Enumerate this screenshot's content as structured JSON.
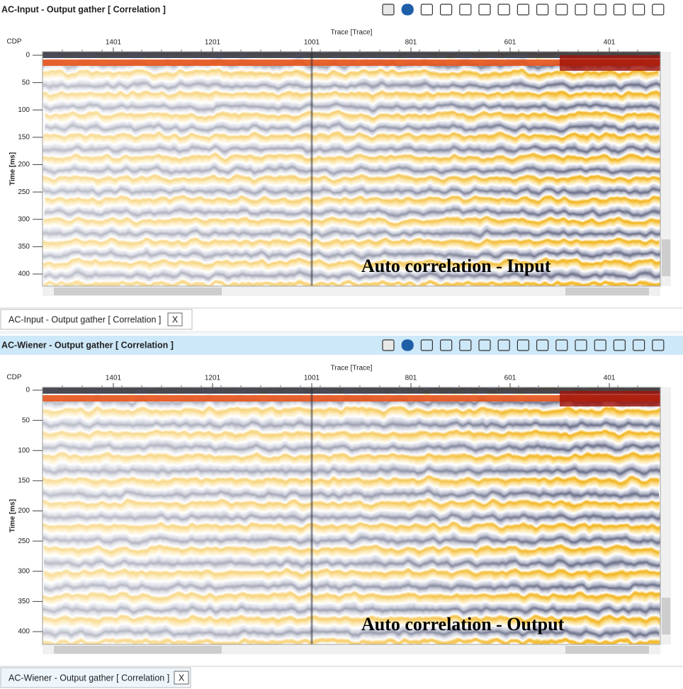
{
  "panels": [
    {
      "title": "AC-Input - Output gather [ Correlation ]",
      "x_axis_label": "Trace [Trace]",
      "cdp_label": "CDP",
      "y_axis_label": "Time [ms]",
      "x_ticks": [
        1401,
        1201,
        1001,
        801,
        601,
        401
      ],
      "y_ticks": [
        0,
        50,
        100,
        150,
        200,
        250,
        300,
        350,
        400
      ],
      "overlay": "Auto correlation - Input",
      "tab": "AC-Input - Output gather [ Correlation ]",
      "close": "X"
    },
    {
      "title": "AC-Wiener - Output gather [ Correlation ]",
      "x_axis_label": "Trace [Trace]",
      "cdp_label": "CDP",
      "y_axis_label": "Time [ms]",
      "x_ticks": [
        1401,
        1201,
        1001,
        801,
        601,
        401
      ],
      "y_ticks": [
        0,
        50,
        100,
        150,
        200,
        250,
        300,
        350,
        400
      ],
      "overlay": "Auto correlation - Output",
      "tab": "AC-Wiener - Output gather [ Correlation ]",
      "close": "X"
    }
  ]
}
